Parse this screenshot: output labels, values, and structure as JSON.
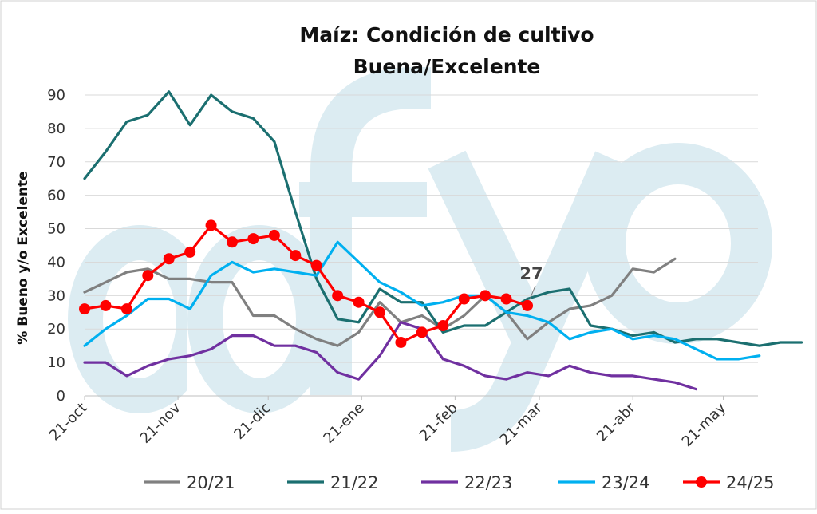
{
  "chart_data": {
    "type": "line",
    "title_line1": "Maíz: Condición de cultivo",
    "title_line2": "Buena/Excelente",
    "ylabel": "% Bueno y/o Excelente",
    "ylim": [
      0,
      90
    ],
    "yticks": [
      0,
      10,
      20,
      30,
      40,
      50,
      60,
      70,
      80,
      90
    ],
    "x_range": [
      0,
      36
    ],
    "x_ticks": [
      {
        "x": 0,
        "label": "21-oct"
      },
      {
        "x": 4.43,
        "label": "21-nov"
      },
      {
        "x": 8.71,
        "label": "21-dic"
      },
      {
        "x": 13.14,
        "label": "21-ene"
      },
      {
        "x": 17.57,
        "label": "21-feb"
      },
      {
        "x": 21.57,
        "label": "21-mar"
      },
      {
        "x": 26.0,
        "label": "21-abr"
      },
      {
        "x": 30.29,
        "label": "21-may"
      }
    ],
    "grid": true,
    "legend_position": "bottom",
    "series": [
      {
        "name": "20/21",
        "color": "#808080",
        "markers": false,
        "x": [
          0,
          1,
          2,
          3,
          4,
          5,
          6,
          7,
          8,
          9,
          10,
          11,
          12,
          13,
          14,
          15,
          16,
          17,
          18,
          19,
          20,
          21,
          22,
          23,
          24,
          25,
          26,
          27,
          28
        ],
        "y": [
          31,
          34,
          37,
          38,
          35,
          35,
          34,
          34,
          24,
          24,
          20,
          17,
          15,
          19,
          28,
          22,
          24,
          20,
          24,
          30,
          25,
          17,
          22,
          26,
          27,
          30,
          38,
          37,
          41
        ]
      },
      {
        "name": "21/22",
        "color": "#1b6f70",
        "markers": false,
        "x": [
          0,
          1,
          2,
          3,
          4,
          5,
          6,
          7,
          8,
          9,
          10,
          11,
          12,
          13,
          14,
          15,
          16,
          17,
          18,
          19,
          20,
          21,
          22,
          23,
          24,
          25,
          26,
          27,
          28,
          29,
          30,
          31,
          32,
          33,
          34
        ],
        "y": [
          65,
          73,
          82,
          84,
          91,
          81,
          90,
          85,
          83,
          76,
          55,
          35,
          23,
          22,
          32,
          28,
          28,
          19,
          21,
          21,
          25,
          29,
          31,
          32,
          21,
          20,
          18,
          19,
          16,
          17,
          17,
          16,
          15,
          16,
          16
        ]
      },
      {
        "name": "22/23",
        "color": "#7030a0",
        "markers": false,
        "x": [
          0,
          1,
          2,
          3,
          4,
          5,
          6,
          7,
          8,
          9,
          10,
          11,
          12,
          13,
          14,
          15,
          16,
          17,
          18,
          19,
          20,
          21,
          22,
          23,
          24,
          25,
          26,
          27,
          28,
          29
        ],
        "y": [
          10,
          10,
          6,
          9,
          11,
          12,
          14,
          18,
          18,
          15,
          15,
          13,
          7,
          5,
          12,
          22,
          20,
          11,
          9,
          6,
          5,
          7,
          6,
          9,
          7,
          6,
          6,
          5,
          4,
          2
        ]
      },
      {
        "name": "23/24",
        "color": "#00b0f0",
        "markers": false,
        "x": [
          0,
          1,
          2,
          3,
          4,
          5,
          6,
          7,
          8,
          9,
          10,
          11,
          12,
          13,
          14,
          15,
          16,
          17,
          18,
          19,
          20,
          21,
          22,
          23,
          24,
          25,
          26,
          27,
          28,
          29,
          30,
          31,
          32
        ],
        "y": [
          15,
          20,
          24,
          29,
          29,
          26,
          36,
          40,
          37,
          38,
          37,
          36,
          46,
          40,
          34,
          31,
          27,
          28,
          30,
          30,
          25,
          24,
          22,
          17,
          19,
          20,
          17,
          18,
          17,
          14,
          11,
          11,
          12
        ]
      },
      {
        "name": "24/25",
        "color": "#ff0000",
        "markers": true,
        "x": [
          0,
          1,
          2,
          3,
          4,
          5,
          6,
          7,
          8,
          9,
          10,
          11,
          12,
          13,
          14,
          15,
          16,
          17,
          18,
          19,
          20,
          21
        ],
        "y": [
          26,
          27,
          26,
          36,
          41,
          43,
          51,
          46,
          47,
          48,
          42,
          39,
          30,
          28,
          25,
          16,
          19,
          21,
          29,
          30,
          29,
          27
        ]
      }
    ],
    "annotation": {
      "text": "27",
      "x": 21,
      "y": 27,
      "color": "#444444"
    }
  },
  "watermark": {
    "text": "()fyo",
    "color": "#dcecf2"
  }
}
